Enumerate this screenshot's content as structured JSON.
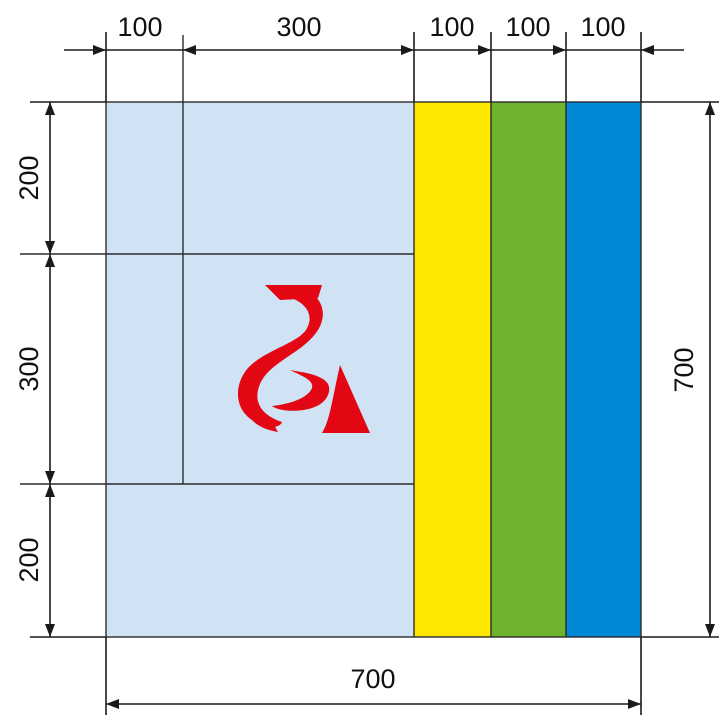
{
  "diagram": {
    "top_dimensions": [
      "100",
      "300",
      "100",
      "100",
      "100"
    ],
    "left_dimensions": [
      "200",
      "300",
      "200"
    ],
    "right_dimension": "700",
    "bottom_dimension": "700",
    "colors": {
      "background_panel": "#cfe3f5",
      "band_yellow": "#ffe800",
      "band_green": "#6db42c",
      "band_blue": "#0087d5",
      "logo_red": "#e30613"
    },
    "logo": "red-hook-emblem"
  }
}
